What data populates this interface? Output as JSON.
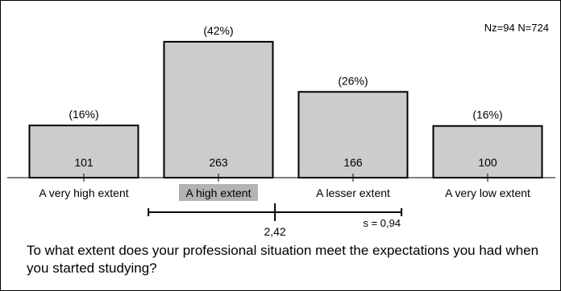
{
  "chart_data": {
    "type": "bar",
    "categories": [
      "A very high extent",
      "A high extent",
      "A lesser extent",
      "A very low extent"
    ],
    "values": [
      101,
      263,
      166,
      100
    ],
    "percent_labels": [
      "(16%)",
      "(42%)",
      "(26%)",
      "(16%)"
    ],
    "highlight_category": "A high extent",
    "ylim": [
      0,
      280
    ],
    "grid": false,
    "legend": "none",
    "sample_info": "Nz=94  N=724",
    "summary": {
      "mean": 2.42,
      "mean_label": "2,42",
      "sd": 0.94,
      "sd_label": "s = 0,94",
      "interval": [
        1.48,
        3.36
      ]
    },
    "colors": {
      "bar_fill": "#cccccc",
      "bar_stroke": "#000000",
      "highlight_label_bg": "#b3b3b3"
    }
  },
  "question": "To what extent does your professional situation meet the expectations you had when you started studying?"
}
